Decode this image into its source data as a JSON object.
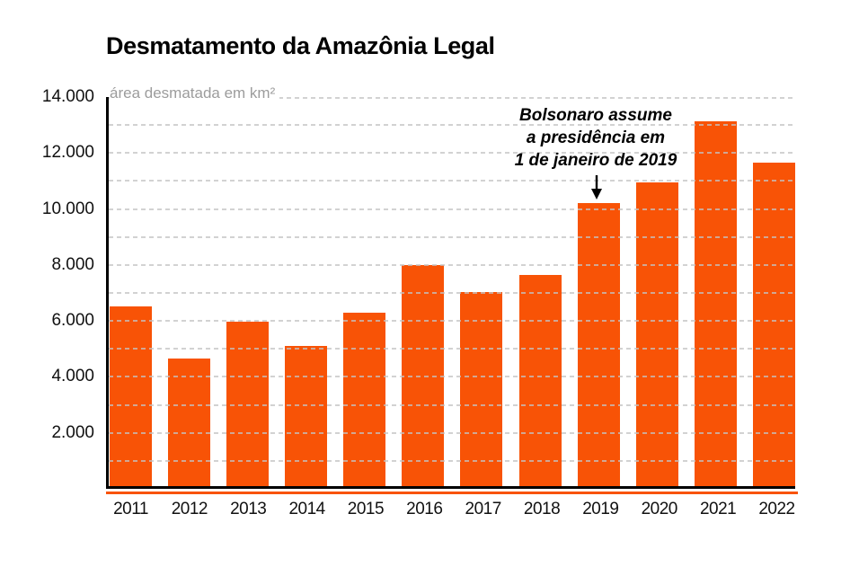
{
  "chart_data": {
    "type": "bar",
    "title": "Desmatamento da Amazônia Legal",
    "ylabel": "área desmatada em km²",
    "xlabel": "",
    "categories": [
      "2011",
      "2012",
      "2013",
      "2014",
      "2015",
      "2016",
      "2017",
      "2018",
      "2019",
      "2020",
      "2021",
      "2022"
    ],
    "values": [
      6418,
      4571,
      5891,
      5012,
      6207,
      7893,
      6947,
      7536,
      10129,
      10851,
      13038,
      11568
    ],
    "ylim": [
      0,
      14000
    ],
    "grid": true,
    "grid_step": 1000,
    "ytick_values": [
      2000,
      4000,
      6000,
      8000,
      10000,
      12000,
      14000
    ],
    "ytick_labels": [
      "2.000",
      "4.000",
      "6.000",
      "8.000",
      "10.000",
      "12.000",
      "14.000"
    ],
    "legend": false,
    "annotation": {
      "lines": [
        "Bolsonaro assume",
        "a presidência em",
        "1 de janeiro de 2019"
      ],
      "target_category": "2019"
    },
    "colors": {
      "bar": "#F85306",
      "grid": "#C3C3C3",
      "axis": "#000000",
      "tick_text": "#111111",
      "ylabel_text": "#9C9C9C",
      "annotation_text": "#000000"
    }
  }
}
